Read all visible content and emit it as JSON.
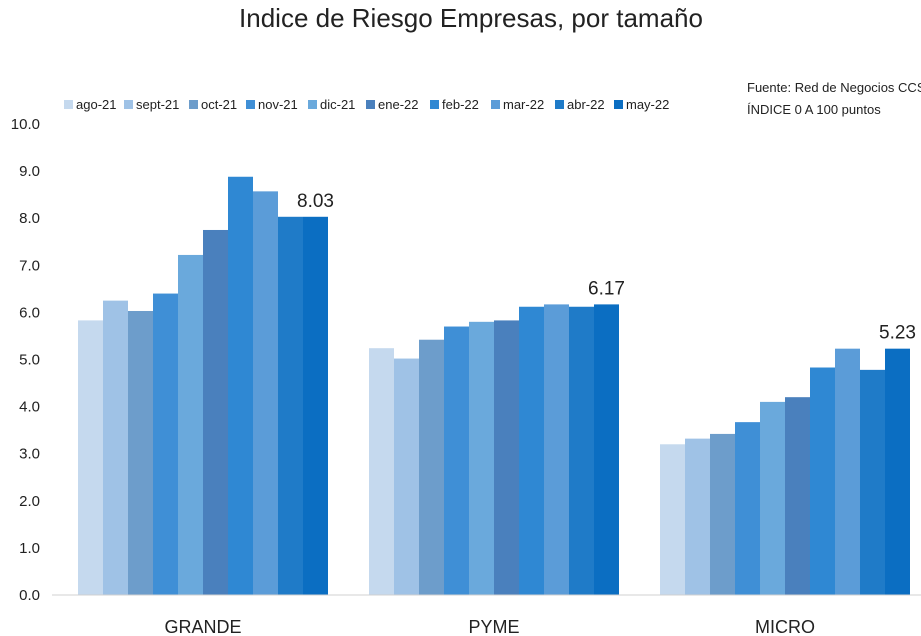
{
  "chart_data": {
    "type": "bar",
    "title": "Indice de Riesgo Empresas, por tamaño",
    "source_lines": [
      "Fuente: Red de Negocios CCS",
      "ÍNDICE 0 A 100  puntos"
    ],
    "categories": [
      "GRANDE",
      "PYME",
      "MICRO"
    ],
    "ylim": [
      0,
      10
    ],
    "yticks": [
      "0.0",
      "1.0",
      "2.0",
      "3.0",
      "4.0",
      "5.0",
      "6.0",
      "7.0",
      "8.0",
      "9.0",
      "10.0"
    ],
    "grid": false,
    "legend_position": "top-left",
    "series": [
      {
        "name": "ago-21",
        "color": "#c5d9ee",
        "values": [
          5.83,
          5.24,
          3.2
        ]
      },
      {
        "name": "sept-21",
        "color": "#9fc2e6",
        "values": [
          6.25,
          5.02,
          3.32
        ]
      },
      {
        "name": "oct-21",
        "color": "#6d9dcb",
        "values": [
          6.03,
          5.42,
          3.42
        ]
      },
      {
        "name": "nov-21",
        "color": "#3f8fd6",
        "values": [
          6.4,
          5.7,
          3.67
        ]
      },
      {
        "name": "dic-21",
        "color": "#6aa9dc",
        "values": [
          7.22,
          5.8,
          4.1
        ]
      },
      {
        "name": "ene-22",
        "color": "#4a80bd",
        "values": [
          7.75,
          5.83,
          4.2
        ]
      },
      {
        "name": "feb-22",
        "color": "#2f88d3",
        "values": [
          8.88,
          6.12,
          4.83
        ]
      },
      {
        "name": "mar-22",
        "color": "#5b9cd8",
        "values": [
          8.57,
          6.17,
          5.23
        ]
      },
      {
        "name": "abr-22",
        "color": "#1f7bc8",
        "values": [
          8.03,
          6.12,
          4.78
        ]
      },
      {
        "name": "may-22",
        "color": "#0b6ec2",
        "values": [
          8.03,
          6.17,
          5.23
        ]
      }
    ],
    "data_labels": [
      {
        "category": "GRANDE",
        "series": "may-22",
        "text": "8.03"
      },
      {
        "category": "PYME",
        "series": "may-22",
        "text": "6.17"
      },
      {
        "category": "MICRO",
        "series": "may-22",
        "text": "5.23"
      }
    ]
  }
}
